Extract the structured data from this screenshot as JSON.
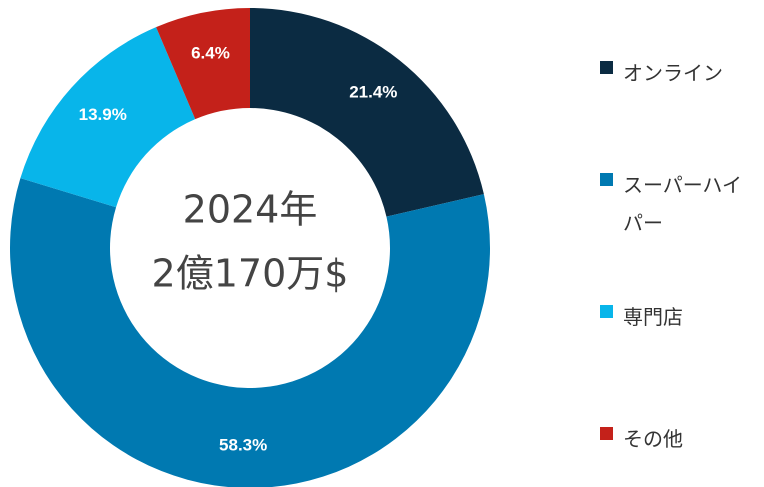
{
  "chart_data": {
    "type": "donut",
    "center_label": [
      "2024年",
      "2億170万$"
    ],
    "categories": [
      "オンライン",
      "スーパーハイパー",
      "専門店",
      "その他"
    ],
    "values": [
      21.4,
      58.3,
      13.9,
      6.4
    ],
    "value_labels": [
      "21.4%",
      "58.3%",
      "13.9%",
      "6.4%"
    ],
    "colors": [
      "#0b2b42",
      "#0079b1",
      "#08b5ea",
      "#c4211a"
    ]
  }
}
